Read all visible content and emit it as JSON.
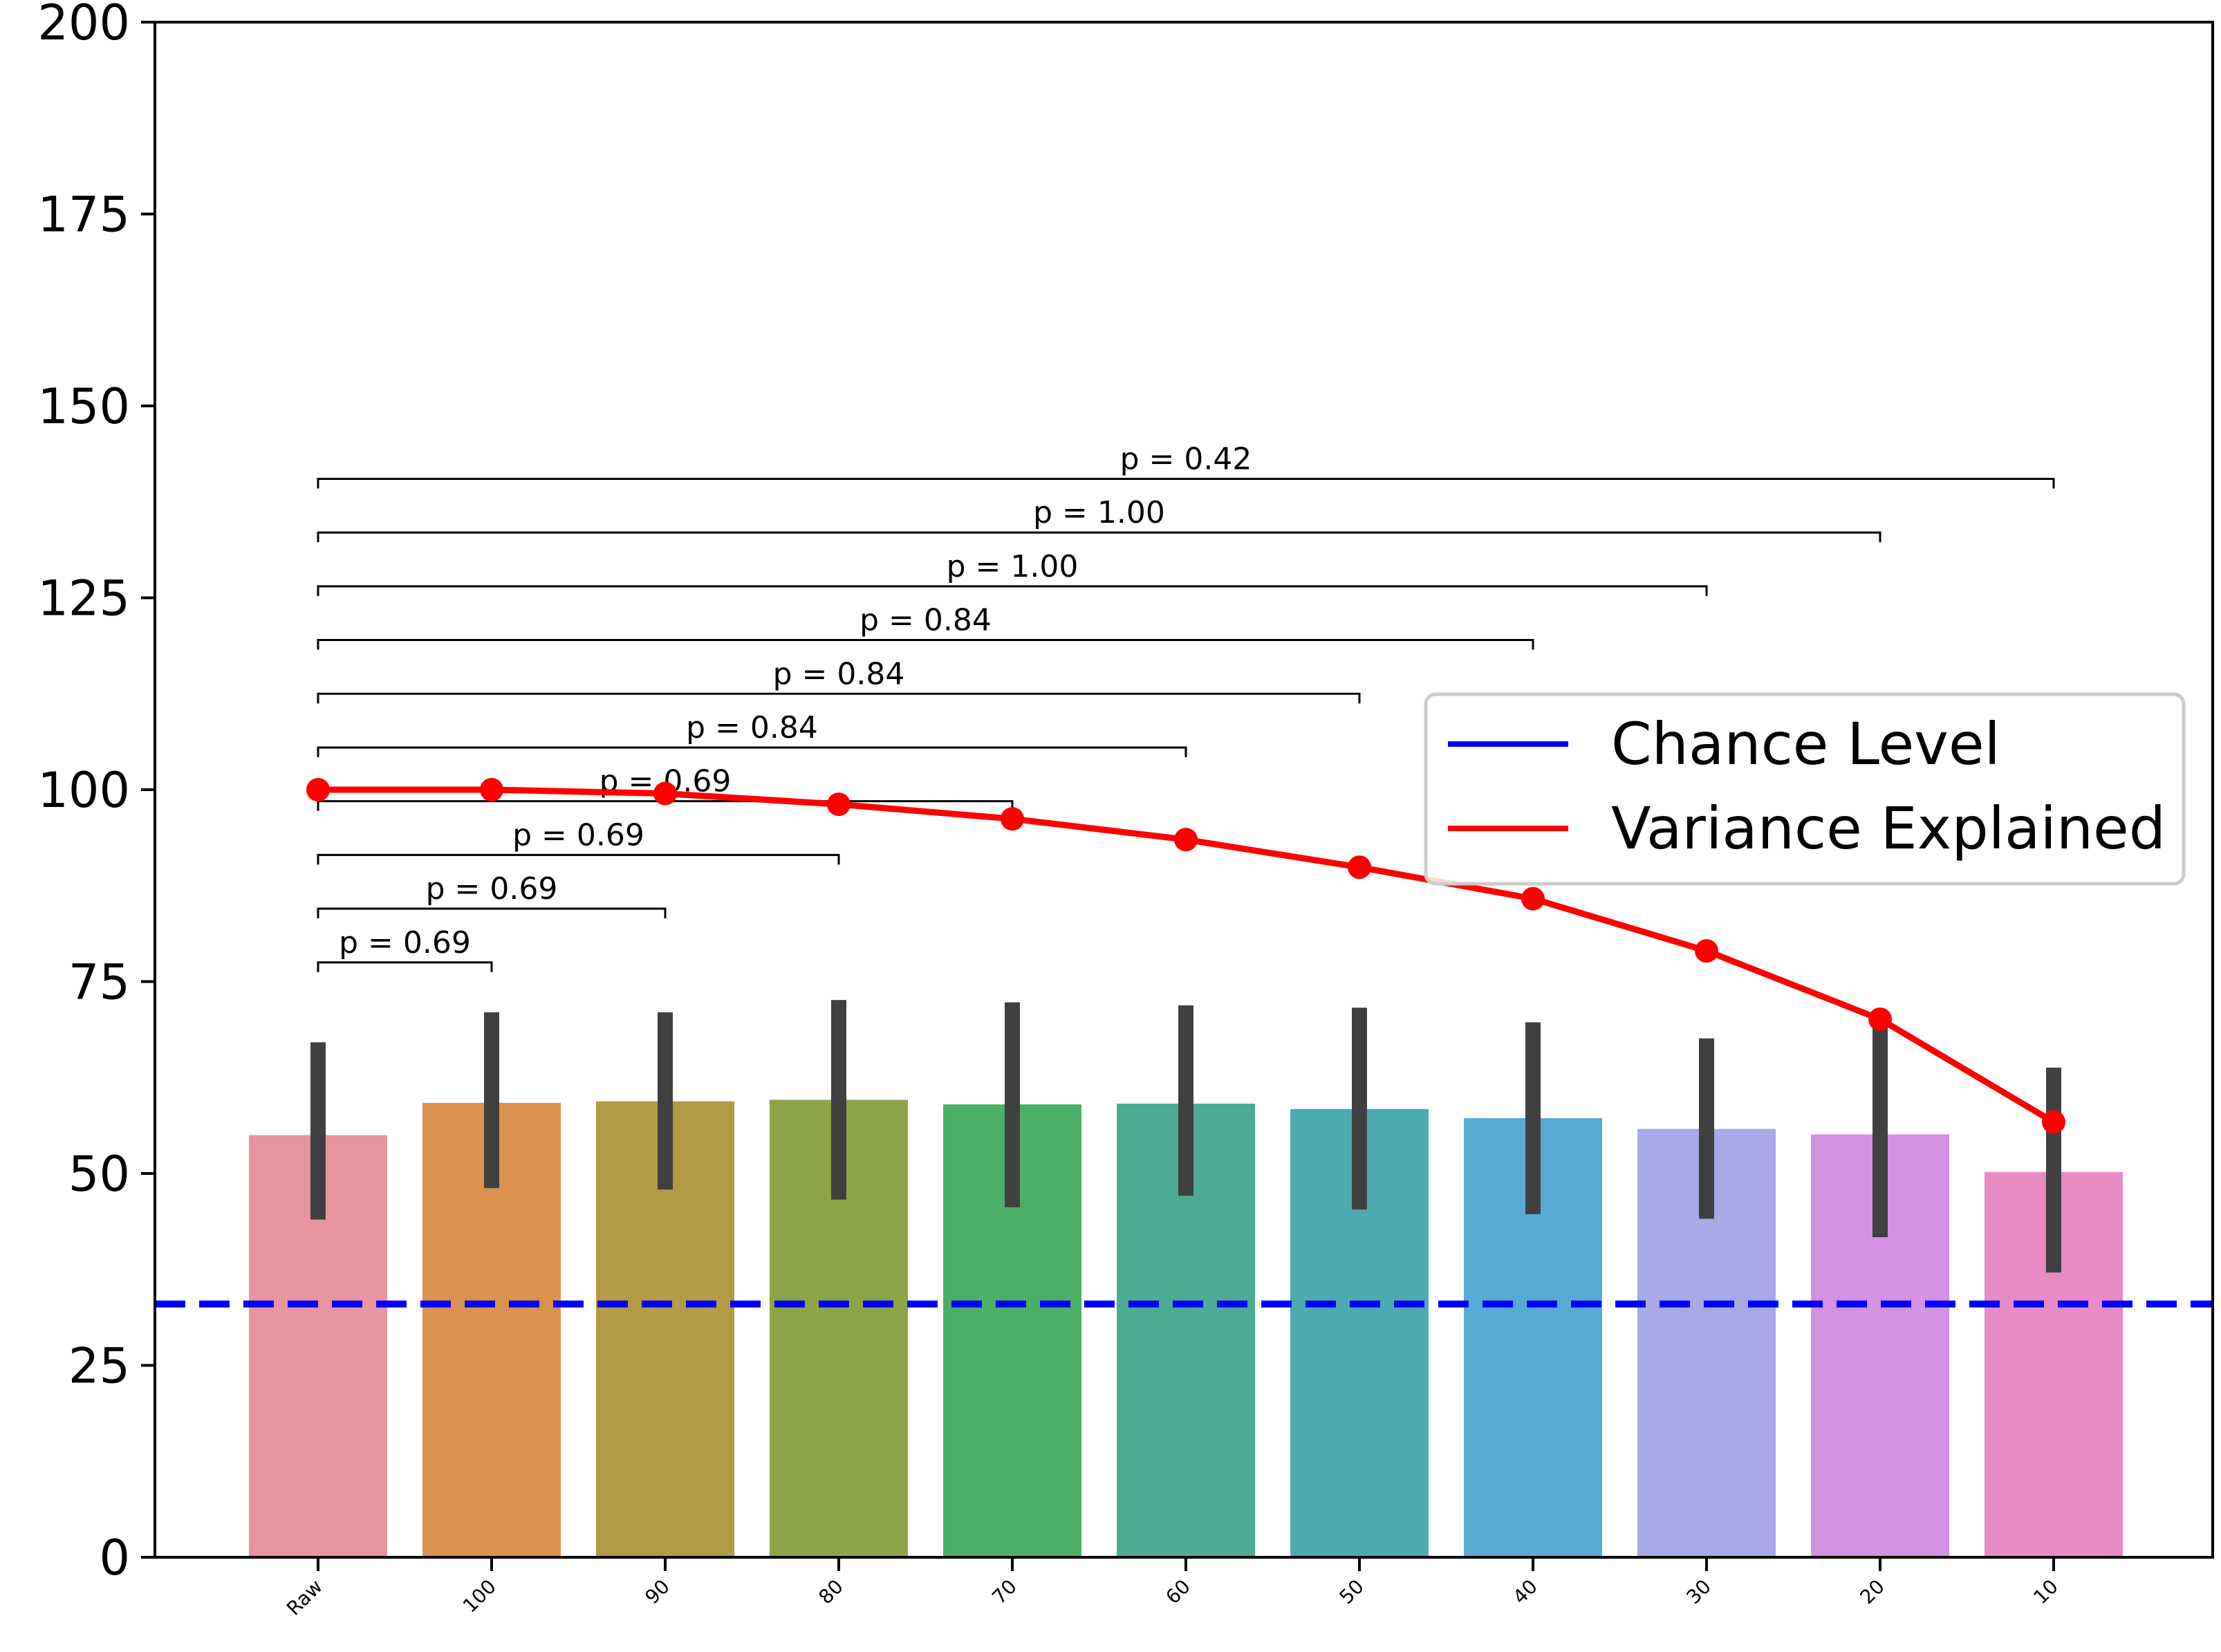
{
  "chart_data": {
    "type": "bar",
    "title": "",
    "xlabel": "",
    "ylabel": "",
    "ylim": [
      0,
      200
    ],
    "yticks": [
      0,
      25,
      50,
      75,
      100,
      125,
      150,
      175,
      200
    ],
    "categories": [
      "Raw",
      "100",
      "90",
      "80",
      "70",
      "60",
      "50",
      "40",
      "30",
      "20",
      "10"
    ],
    "bar_colors": [
      "#e8959f",
      "#db914f",
      "#b39b46",
      "#8da546",
      "#4baf67",
      "#4dab93",
      "#4eaab1",
      "#57aad3",
      "#a8a9e6",
      "#d492e3",
      "#e88bc4"
    ],
    "values": [
      55,
      59.2,
      59.4,
      59.6,
      59,
      59.1,
      58.4,
      57.2,
      55.8,
      55.1,
      50.2
    ],
    "error_low": [
      44,
      48.1,
      47.9,
      46.6,
      45.6,
      47.1,
      45.3,
      44.7,
      44.1,
      41.7,
      37.1
    ],
    "error_high": [
      67.1,
      71,
      71,
      72.6,
      72.3,
      71.9,
      71.6,
      69.7,
      67.6,
      71,
      63.8
    ],
    "variance_explained": [
      100,
      100,
      99.5,
      98.1,
      96.2,
      93.5,
      89.9,
      85.8,
      79,
      70.1,
      56.7
    ],
    "chance_level": 33,
    "significance": [
      {
        "from": "Raw",
        "to": "100",
        "label": "p = 0.69",
        "y": 77.5
      },
      {
        "from": "Raw",
        "to": "90",
        "label": "p = 0.69",
        "y": 84.5
      },
      {
        "from": "Raw",
        "to": "80",
        "label": "p = 0.69",
        "y": 91.5
      },
      {
        "from": "Raw",
        "to": "70",
        "label": "p = 0.69",
        "y": 98.5
      },
      {
        "from": "Raw",
        "to": "60",
        "label": "p = 0.84",
        "y": 105.5
      },
      {
        "from": "Raw",
        "to": "50",
        "label": "p = 0.84",
        "y": 112.5
      },
      {
        "from": "Raw",
        "to": "40",
        "label": "p = 0.84",
        "y": 119.5
      },
      {
        "from": "Raw",
        "to": "30",
        "label": "p = 1.00",
        "y": 126.5
      },
      {
        "from": "Raw",
        "to": "20",
        "label": "p = 1.00",
        "y": 133.5
      },
      {
        "from": "Raw",
        "to": "10",
        "label": "p = 0.42",
        "y": 140.5
      }
    ],
    "legend": {
      "position": "right",
      "entries": [
        {
          "label": "Chance Level",
          "color": "#0000ff"
        },
        {
          "label": "Variance Explained",
          "color": "#ff0000"
        }
      ]
    },
    "grid": false
  },
  "colors": {
    "chance_line": "#0000ff",
    "variance_line": "#ff0000",
    "error_bar": "#404040"
  }
}
